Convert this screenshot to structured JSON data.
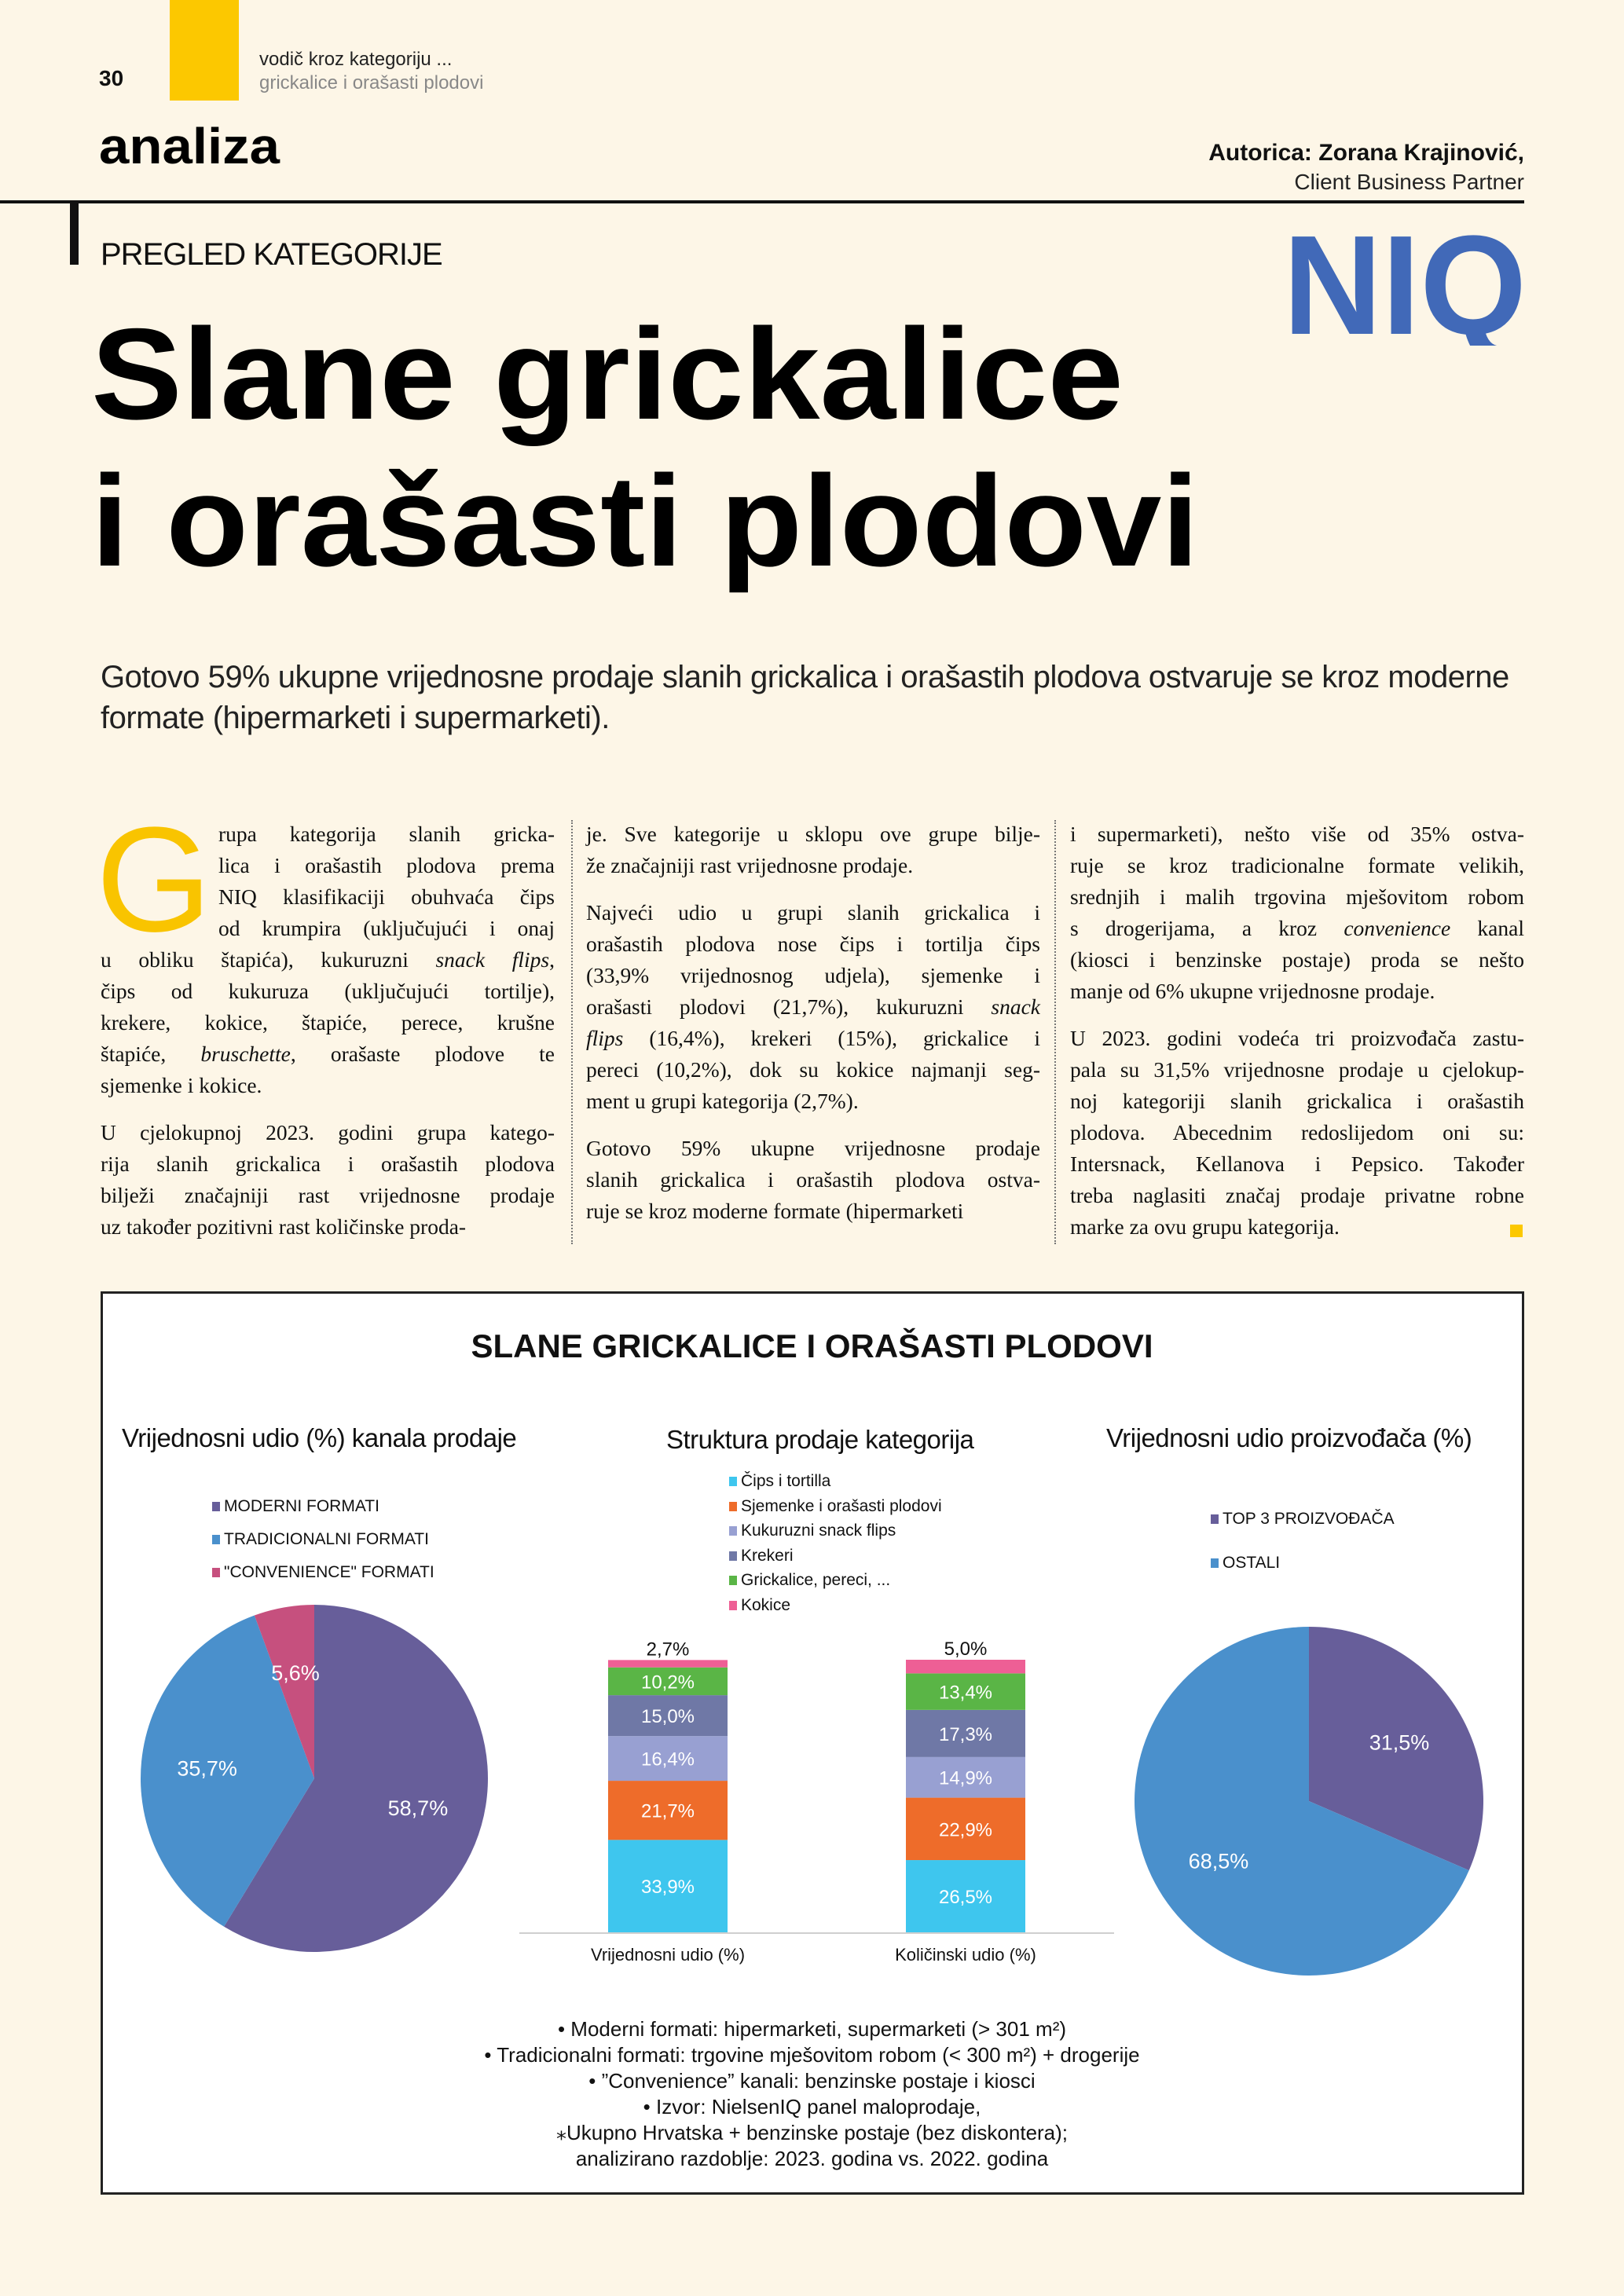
{
  "header": {
    "page_number": "30",
    "section_line1": "vodič kroz kategoriju ...",
    "section_line2": "grickalice i orašasti plodovi",
    "rubric": "analiza",
    "author": "Autorica: Zorana Krajinović,",
    "author_role": "Client Business Partner",
    "logo_text": "NIQ",
    "accent_color": "#fcc800",
    "logo_color": "#4169b8"
  },
  "article": {
    "kicker": "PREGLED KATEGORIJE",
    "title_line1": "Slane grickalice",
    "title_line2": "i orašasti plodovi",
    "standfirst": "Gotovo 59% ukupne vrijednosne prodaje slanih grickalica i orašastih plodova ostvaruje se kroz moderne formate (hipermarketi i supermarketi).",
    "drop_cap": "G",
    "columns": [
      [
        [
          "rupa kategorija slanih gricka-"
        ],
        [
          "lica i orašastih plodova prema"
        ],
        [
          "NIQ klasifikaciji obuhvaća čips"
        ],
        [
          "od krumpira (uključujući i onaj"
        ],
        [
          "u obliku štapića), kukuruzni ",
          {
            "i": "snack flips"
          },
          ","
        ],
        [
          "čips od kukuruza (uključujući tortilje),"
        ],
        [
          "krekere, kokice, štapiće, perece, krušne"
        ],
        [
          "štapiće, ",
          {
            "i": "bruschette"
          },
          ", orašaste plodove te"
        ],
        [
          "sjemenke i kokice."
        ],
        null,
        [
          "U cjelokupnoj 2023. godini grupa katego-"
        ],
        [
          "rija slanih grickalica i orašastih plodova"
        ],
        [
          "bilježi značajniji rast vrijednosne prodaje"
        ],
        [
          "uz također pozitivni rast količinske proda-"
        ]
      ],
      [
        [
          "je. Sve kategorije u sklopu ove grupe bilje-"
        ],
        [
          "že značajniji rast vrijednosne prodaje."
        ],
        null,
        [
          "Najveći udio u grupi slanih grickalica i"
        ],
        [
          "orašastih plodova nose čips i tortilja čips"
        ],
        [
          "(33,9% vrijednosnog udjela), sjemenke i"
        ],
        [
          "orašasti plodovi (21,7%), kukuruzni ",
          {
            "i": "snack"
          }
        ],
        [
          {
            "i": "flips"
          },
          " (16,4%), krekeri (15%), grickalice i"
        ],
        [
          "pereci (10,2%), dok su kokice najmanji seg-"
        ],
        [
          "ment u grupi kategorija (2,7%)."
        ],
        null,
        [
          "Gotovo 59% ukupne vrijednosne prodaje"
        ],
        [
          "slanih grickalica i orašastih plodova ostva-"
        ],
        [
          "ruje se kroz moderne formate (hipermarketi"
        ]
      ],
      [
        [
          "i supermarketi), nešto više od 35% ostva-"
        ],
        [
          "ruje se kroz tradicionalne formate velikih,"
        ],
        [
          "srednjih i malih trgovina mješovitom robom"
        ],
        [
          "s drogerijama, a kroz ",
          {
            "i": "convenience"
          },
          " kanal"
        ],
        [
          "(kiosci i benzinske postaje) proda se nešto"
        ],
        [
          "manje od 6% ukupne vrijednosne prodaje."
        ],
        null,
        [
          "U 2023. godini vodeća tri proizvođača zastu-"
        ],
        [
          "pala su 31,5% vrijednosne prodaje u cjelokup-"
        ],
        [
          "noj kategoriji slanih grickalica i orašastih"
        ],
        [
          "plodova. Abecednim redoslijedom oni su:"
        ],
        [
          "Intersnack, Kellanova i Pepsico. Također"
        ],
        [
          "treba naglasiti značaj prodaje privatne robne"
        ],
        [
          "marke za ovu grupu kategorija."
        ]
      ]
    ]
  },
  "infographic": {
    "title": "SLANE GRICKALICE I ORAŠASTI PLODOVI",
    "footnotes": [
      "•    Moderni formati: hipermarketi, supermarketi (> 301 m²)",
      "•    Tradicionalni formati: trgovine mješovitom robom (< 300 m²) + drogerije",
      "•    ”Convenience” kanali: benzinske postaje i kiosci",
      "•    Izvor: NielsenIQ panel maloprodaje,",
      "⁎Ukupno Hrvatska + benzinske postaje (bez diskontera);",
      "analizirano razdoblje: 2023. godina vs. 2022. godina"
    ]
  },
  "chart_data": [
    {
      "type": "pie",
      "title": "Vrijednosni udio (%) kanala prodaje",
      "legend_position": "top-left",
      "slices": [
        {
          "name": "MODERNI FORMATI",
          "value": 58.7,
          "label": "58,7%",
          "color": "#675e9a"
        },
        {
          "name": "TRADICIONALNI FORMATI",
          "value": 35.7,
          "label": "35,7%",
          "color": "#4a90cc"
        },
        {
          "name": "\"CONVENIENCE\" FORMATI",
          "value": 5.6,
          "label": "5,6%",
          "color": "#c6507e"
        }
      ]
    },
    {
      "type": "bar",
      "stacked": true,
      "title": "Struktura prodaje kategorija",
      "legend_position": "top",
      "categories": [
        "Vrijednosni udio (%)",
        "Količinski udio (%)"
      ],
      "ylim": [
        0,
        100
      ],
      "series": [
        {
          "name": "Čips i tortilla",
          "color": "#3ec6ee",
          "values": [
            33.9,
            26.5
          ],
          "labels": [
            "33,9%",
            "26,5%"
          ]
        },
        {
          "name": "Sjemenke i orašasti plodovi",
          "color": "#ee6c2a",
          "values": [
            21.7,
            22.9
          ],
          "labels": [
            "21,7%",
            "22,9%"
          ]
        },
        {
          "name": "Kukuruzni snack flips",
          "color": "#98a0d2",
          "values": [
            16.4,
            14.9
          ],
          "labels": [
            "16,4%",
            "14,9%"
          ]
        },
        {
          "name": "Krekeri",
          "color": "#6f78a6",
          "values": [
            15.0,
            17.3
          ],
          "labels": [
            "15,0%",
            "17,3%"
          ]
        },
        {
          "name": "Grickalice, pereci, ...",
          "color": "#5ab546",
          "values": [
            10.2,
            13.4
          ],
          "labels": [
            "10,2%",
            "13,4%"
          ]
        },
        {
          "name": "Kokice",
          "color": "#ee5f95",
          "values": [
            2.7,
            5.0
          ],
          "labels": [
            "2,7%",
            "5,0%"
          ]
        }
      ]
    },
    {
      "type": "pie",
      "title": "Vrijednosni udio proizvođača (%)",
      "legend_position": "top-left",
      "slices": [
        {
          "name": "TOP 3 PROIZVOĐAČA",
          "value": 31.5,
          "label": "31,5%",
          "color": "#675e9a"
        },
        {
          "name": "OSTALI",
          "value": 68.5,
          "label": "68,5%",
          "color": "#4a90cc"
        }
      ]
    }
  ]
}
